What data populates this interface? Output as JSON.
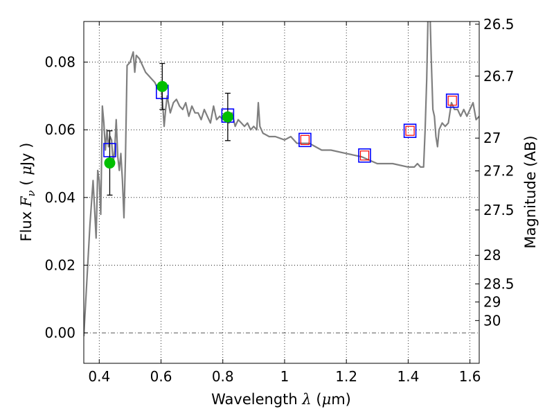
{
  "chart_data": {
    "type": "scatter",
    "xlabel": {
      "pre": "Wavelength ",
      "sym": "λ",
      "open": " (",
      "mu": "μ",
      "unit": "m)"
    },
    "ylabel": {
      "pre": "Flux  ",
      "sym": "F",
      "sub": "ν",
      "open": "  ( ",
      "mu": "μ",
      "unit": "Jy )"
    },
    "y2label": "Magnitude (AB)",
    "xlim": [
      0.35,
      1.63
    ],
    "ylim": [
      -0.009,
      0.092
    ],
    "x_ticks": [
      0.4,
      0.6,
      0.8,
      1.0,
      1.2,
      1.4,
      1.6
    ],
    "x_tick_labels": [
      "0.4",
      "0.6",
      "0.8",
      "1",
      "1.2",
      "1.4",
      "1.6"
    ],
    "y_ticks": [
      0.0,
      0.02,
      0.04,
      0.06,
      0.08
    ],
    "y_tick_labels": [
      "0.00",
      "0.02",
      "0.04",
      "0.06",
      "0.08"
    ],
    "y2_ticks": [
      26.5,
      26.7,
      27,
      27.2,
      27.5,
      28,
      28.5,
      29,
      30
    ],
    "y2_tick_labels": [
      "26.5",
      "26.7",
      "27",
      "27.2",
      "27.5",
      "28",
      "28.5",
      "29",
      "30"
    ],
    "grid": true,
    "colors": {
      "spectrum": "#7f7f7f",
      "observed": "#00bf00",
      "model_box": "#0000ff",
      "model_box_inner": "#ff0000",
      "errorbar": "#000000",
      "zero_line": "#555555"
    },
    "series": [
      {
        "type": "line",
        "x": [
          0.35,
          0.37,
          0.38,
          0.39,
          0.395,
          0.4,
          0.405,
          0.41,
          0.415,
          0.42,
          0.425,
          0.43,
          0.435,
          0.44,
          0.445,
          0.45,
          0.455,
          0.46,
          0.465,
          0.47,
          0.475,
          0.48,
          0.485,
          0.49,
          0.5,
          0.51,
          0.515,
          0.52,
          0.53,
          0.54,
          0.55,
          0.56,
          0.57,
          0.58,
          0.59,
          0.6,
          0.605,
          0.61,
          0.615,
          0.62,
          0.63,
          0.64,
          0.65,
          0.66,
          0.67,
          0.68,
          0.69,
          0.7,
          0.71,
          0.72,
          0.73,
          0.74,
          0.75,
          0.76,
          0.77,
          0.78,
          0.79,
          0.8,
          0.81,
          0.82,
          0.83,
          0.84,
          0.85,
          0.86,
          0.87,
          0.88,
          0.89,
          0.9,
          0.91,
          0.915,
          0.92,
          0.93,
          0.95,
          0.97,
          1.0,
          1.02,
          1.04,
          1.06,
          1.08,
          1.1,
          1.12,
          1.15,
          1.2,
          1.25,
          1.3,
          1.35,
          1.4,
          1.42,
          1.43,
          1.44,
          1.45,
          1.455,
          1.46,
          1.465,
          1.47,
          1.475,
          1.48,
          1.485,
          1.49,
          1.495,
          1.5,
          1.51,
          1.52,
          1.53,
          1.54,
          1.55,
          1.56,
          1.57,
          1.58,
          1.59,
          1.6,
          1.61,
          1.62,
          1.63
        ],
        "values": [
          -0.001,
          0.032,
          0.045,
          0.028,
          0.048,
          0.045,
          0.035,
          0.067,
          0.062,
          0.054,
          0.06,
          0.055,
          0.058,
          0.057,
          0.05,
          0.054,
          0.063,
          0.052,
          0.048,
          0.053,
          0.045,
          0.034,
          0.052,
          0.079,
          0.08,
          0.083,
          0.077,
          0.082,
          0.081,
          0.079,
          0.077,
          0.076,
          0.075,
          0.074,
          0.072,
          0.073,
          0.068,
          0.061,
          0.066,
          0.07,
          0.065,
          0.068,
          0.069,
          0.067,
          0.066,
          0.068,
          0.064,
          0.067,
          0.065,
          0.065,
          0.063,
          0.066,
          0.064,
          0.062,
          0.067,
          0.063,
          0.064,
          0.063,
          0.064,
          0.062,
          0.065,
          0.061,
          0.063,
          0.062,
          0.061,
          0.062,
          0.06,
          0.061,
          0.06,
          0.068,
          0.061,
          0.059,
          0.058,
          0.058,
          0.057,
          0.058,
          0.056,
          0.056,
          0.056,
          0.055,
          0.054,
          0.054,
          0.053,
          0.052,
          0.05,
          0.05,
          0.049,
          0.049,
          0.05,
          0.049,
          0.049,
          0.06,
          0.075,
          0.097,
          0.097,
          0.08,
          0.066,
          0.064,
          0.058,
          0.055,
          0.06,
          0.062,
          0.061,
          0.062,
          0.068,
          0.066,
          0.066,
          0.064,
          0.066,
          0.064,
          0.066,
          0.068,
          0.063,
          0.064
        ]
      },
      {
        "type": "errorbar",
        "x": [
          0.434,
          0.604,
          0.816
        ],
        "values": [
          0.0502,
          0.0728,
          0.0638
        ],
        "err": [
          0.0095,
          0.0068,
          0.007
        ]
      },
      {
        "type": "square",
        "x": [
          0.434,
          0.604,
          0.816,
          1.066,
          1.259,
          1.406,
          1.543
        ],
        "values": [
          0.054,
          0.0712,
          0.0642,
          0.057,
          0.0524,
          0.0597,
          0.0686
        ]
      }
    ]
  }
}
